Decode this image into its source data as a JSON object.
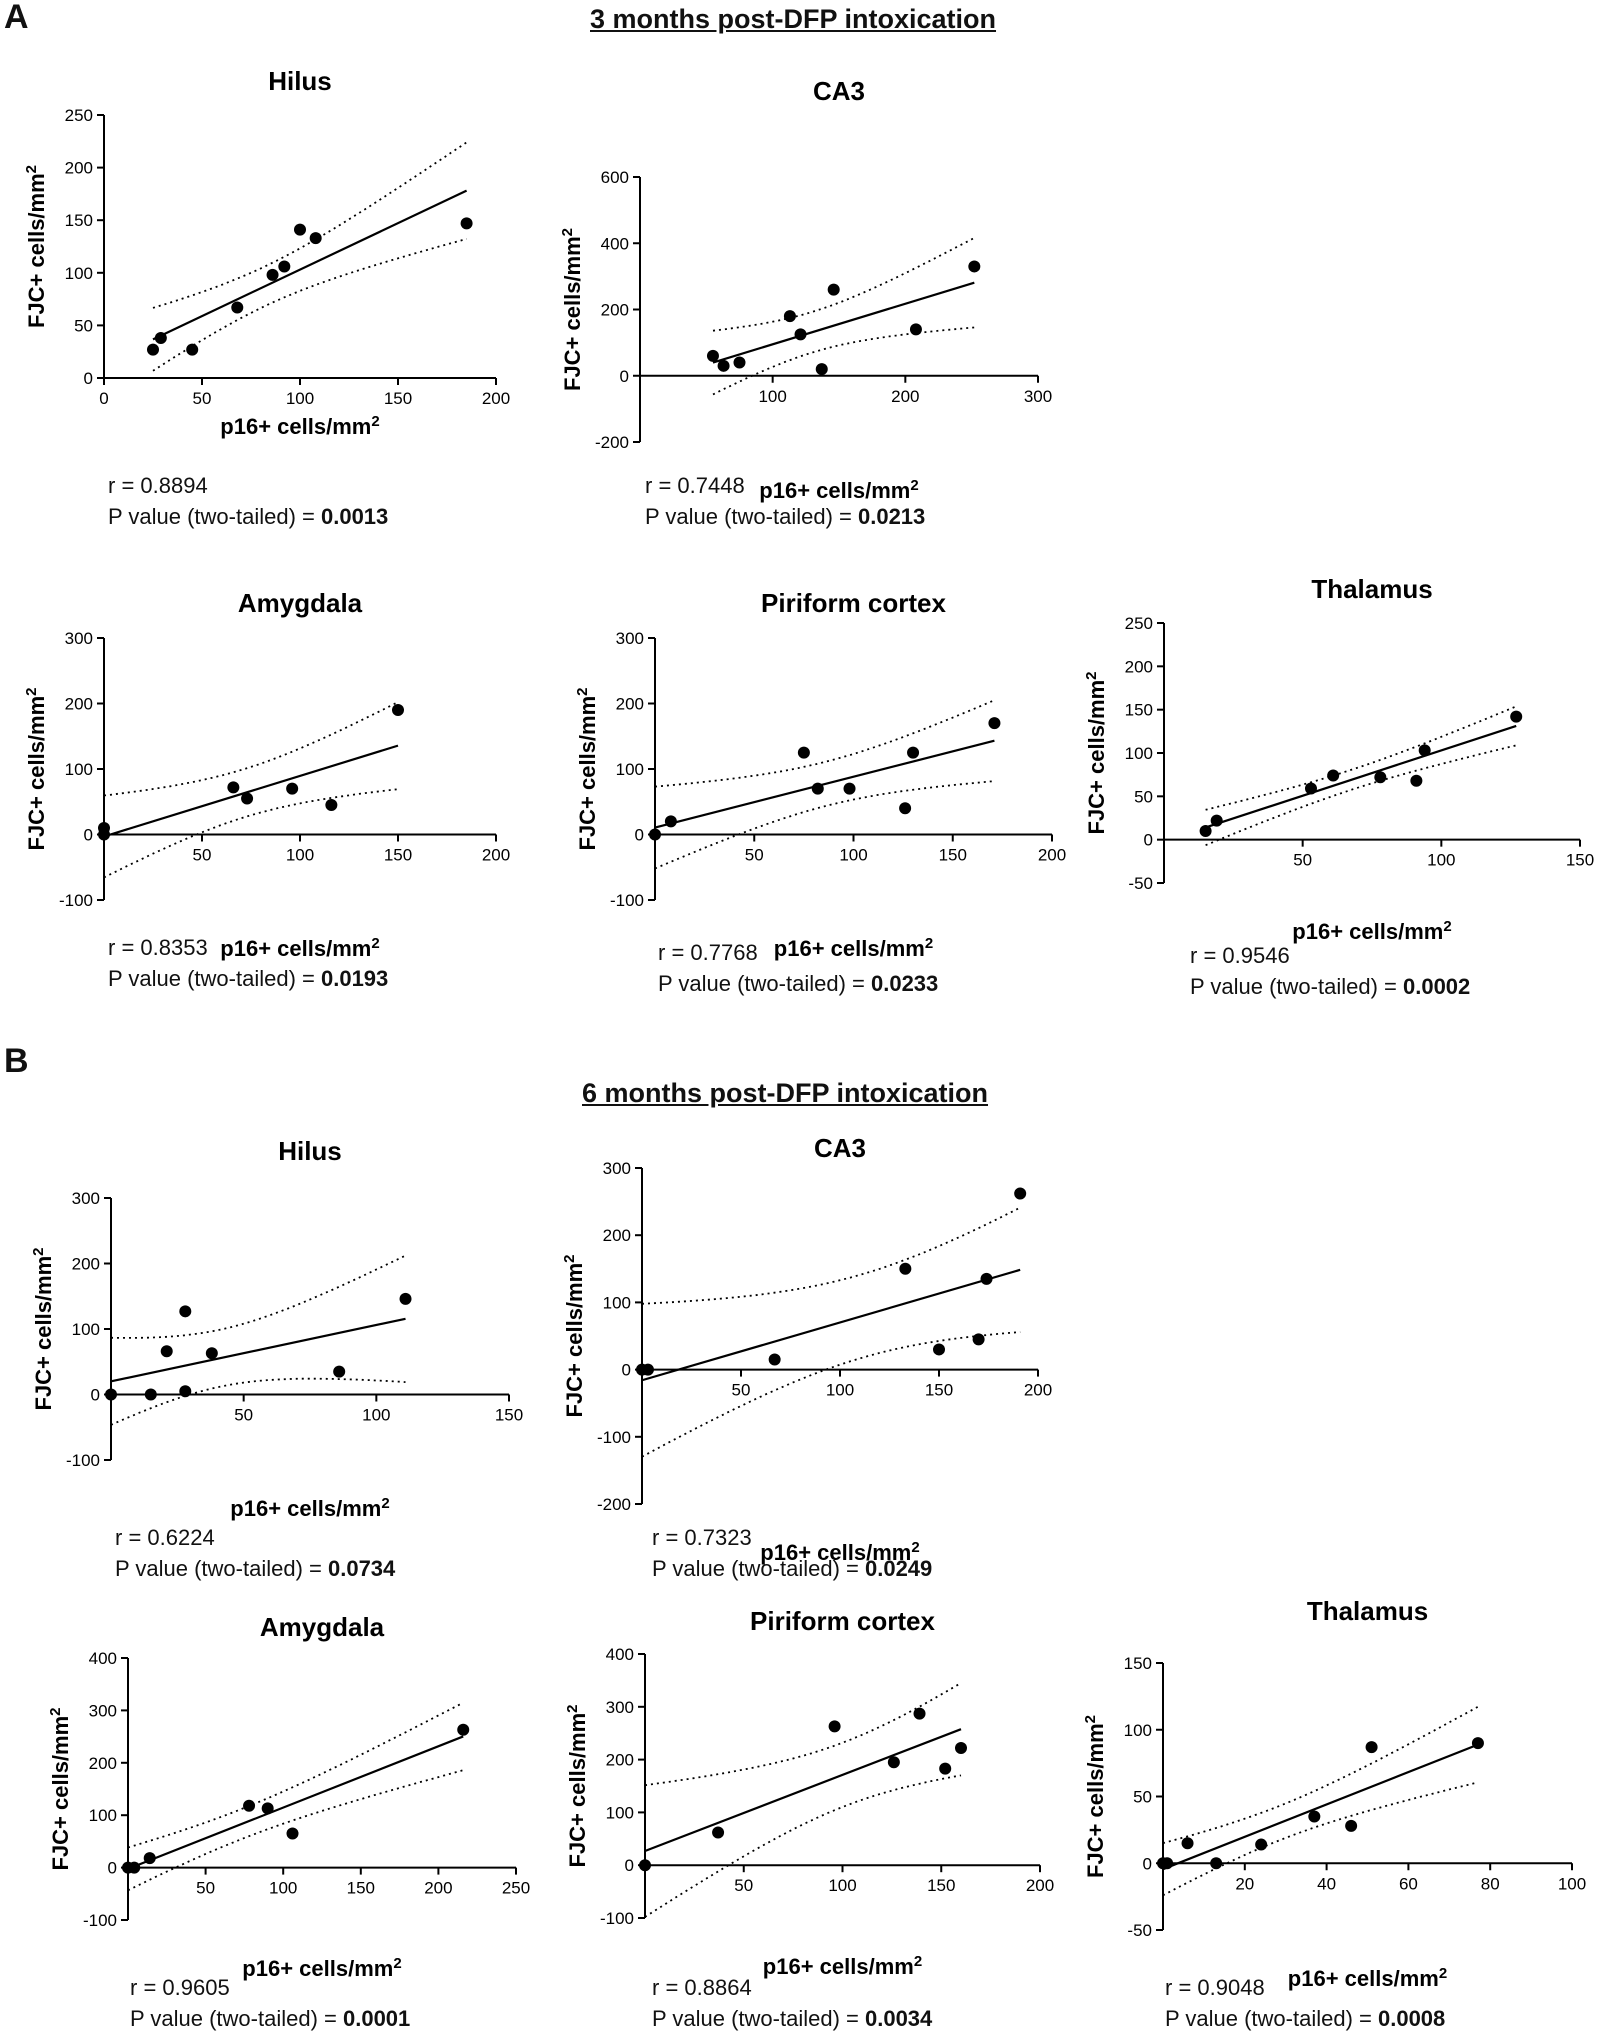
{
  "figure": {
    "panel_a": "A",
    "panel_b": "B",
    "section_a": "3 months post-DFP intoxication",
    "section_b": "6 months post-DFP intoxication"
  },
  "chart_data": [
    {
      "type": "scatter",
      "title": "Hilus",
      "section": "3 months post-DFP intoxication",
      "xlabel": "p16+ cells/mm²",
      "ylabel": "FJC+ cells/mm²",
      "xlim": [
        0,
        200
      ],
      "ylim": [
        0,
        250
      ],
      "xticks": [
        0,
        50,
        100,
        150,
        200
      ],
      "yticks": [
        0,
        50,
        100,
        150,
        200,
        250
      ],
      "x": [
        25,
        29,
        45,
        68,
        86,
        92,
        100,
        108,
        185
      ],
      "y": [
        27,
        38,
        27,
        67,
        98,
        106,
        141,
        133,
        147
      ],
      "fit_range": [
        25,
        185
      ],
      "r_text": "r = 0.8894",
      "p_text": "P value (two-tailed) = ",
      "p_value": "0.0013"
    },
    {
      "type": "scatter",
      "title": "CA3",
      "section": "3 months post-DFP intoxication",
      "xlabel": "p16+ cells/mm²",
      "ylabel": "FJC+ cells/mm²",
      "xlim": [
        0,
        300
      ],
      "ylim": [
        -200,
        600
      ],
      "xticks": [
        100,
        200,
        300
      ],
      "yticks": [
        -200,
        0,
        200,
        400,
        600
      ],
      "x": [
        55,
        63,
        75,
        113,
        121,
        137,
        146,
        208,
        252
      ],
      "y": [
        60,
        30,
        40,
        180,
        125,
        20,
        260,
        140,
        330
      ],
      "fit_range": [
        55,
        252
      ],
      "r_text": "r = 0.7448",
      "p_text": "P value (two-tailed) = ",
      "p_value": "0.0213"
    },
    {
      "type": "scatter",
      "title": "Amygdala",
      "section": "3 months post-DFP intoxication",
      "xlabel": "p16+ cells/mm²",
      "ylabel": "FJC+ cells/mm²",
      "xlim": [
        0,
        200
      ],
      "ylim": [
        -100,
        300
      ],
      "xticks": [
        50,
        100,
        150,
        200
      ],
      "yticks": [
        -100,
        0,
        100,
        200,
        300
      ],
      "x": [
        0,
        0,
        66,
        73,
        96,
        116,
        150
      ],
      "y": [
        0,
        10,
        72,
        55,
        70,
        45,
        190
      ],
      "fit_range": [
        0,
        150
      ],
      "r_text": "r = 0.8353",
      "p_text": "P value (two-tailed) = ",
      "p_value": "0.0193"
    },
    {
      "type": "scatter",
      "title": "Piriform cortex",
      "section": "3 months post-DFP intoxication",
      "xlabel": "p16+ cells/mm²",
      "ylabel": "FJC+ cells/mm²",
      "xlim": [
        0,
        200
      ],
      "ylim": [
        -100,
        300
      ],
      "xticks": [
        50,
        100,
        150,
        200
      ],
      "yticks": [
        -100,
        0,
        100,
        200,
        300
      ],
      "x": [
        0,
        8,
        75,
        82,
        98,
        126,
        130,
        171
      ],
      "y": [
        0,
        20,
        125,
        70,
        70,
        40,
        125,
        170
      ],
      "fit_range": [
        0,
        171
      ],
      "r_text": "r = 0.7768",
      "p_text": "P value (two-tailed) = ",
      "p_value": "0.0233"
    },
    {
      "type": "scatter",
      "title": "Thalamus",
      "section": "3 months post-DFP intoxication",
      "xlabel": "p16+ cells/mm²",
      "ylabel": "FJC+ cells/mm²",
      "xlim": [
        0,
        150
      ],
      "ylim": [
        -50,
        250
      ],
      "xticks": [
        50,
        100,
        150
      ],
      "yticks": [
        -50,
        0,
        50,
        100,
        150,
        200,
        250
      ],
      "x": [
        15,
        19,
        53,
        61,
        78,
        91,
        94,
        127
      ],
      "y": [
        10,
        22,
        59,
        74,
        72,
        68,
        103,
        142
      ],
      "fit_range": [
        15,
        127
      ],
      "r_text": "r = 0.9546",
      "p_text": "P value (two-tailed) = ",
      "p_value": "0.0002"
    },
    {
      "type": "scatter",
      "title": "Hilus",
      "section": "6 months post-DFP intoxication",
      "xlabel": "p16+ cells/mm²",
      "ylabel": "FJC+ cells/mm²",
      "xlim": [
        0,
        150
      ],
      "ylim": [
        -100,
        300
      ],
      "xticks": [
        50,
        100,
        150
      ],
      "yticks": [
        -100,
        0,
        100,
        200,
        300
      ],
      "x": [
        0,
        15,
        21,
        28,
        28,
        38,
        86,
        111
      ],
      "y": [
        0,
        0,
        66,
        5,
        127,
        63,
        35,
        146
      ],
      "fit_range": [
        0,
        111
      ],
      "r_text": "r = 0.6224",
      "p_text": "P value (two-tailed) = ",
      "p_value": "0.0734"
    },
    {
      "type": "scatter",
      "title": "CA3",
      "section": "6 months post-DFP intoxication",
      "xlabel": "p16+ cells/mm²",
      "ylabel": "FJC+ cells/mm²",
      "xlim": [
        0,
        200
      ],
      "ylim": [
        -200,
        300
      ],
      "xticks": [
        50,
        100,
        150,
        200
      ],
      "yticks": [
        -200,
        -100,
        0,
        100,
        200,
        300
      ],
      "x": [
        0,
        3,
        67,
        133,
        150,
        170,
        174,
        191
      ],
      "y": [
        0,
        0,
        15,
        150,
        30,
        45,
        135,
        262
      ],
      "fit_range": [
        0,
        191
      ],
      "r_text": "r = 0.7323",
      "p_text": "P value (two-tailed) = ",
      "p_value": "0.0249"
    },
    {
      "type": "scatter",
      "title": "Amygdala",
      "section": "6 months post-DFP intoxication",
      "xlabel": "p16+ cells/mm²",
      "ylabel": "FJC+ cells/mm²",
      "xlim": [
        0,
        250
      ],
      "ylim": [
        -100,
        400
      ],
      "xticks": [
        50,
        100,
        150,
        200,
        250
      ],
      "yticks": [
        -100,
        0,
        100,
        200,
        300,
        400
      ],
      "x": [
        0,
        4,
        14,
        78,
        90,
        106,
        216
      ],
      "y": [
        0,
        0,
        18,
        118,
        113,
        65,
        263
      ],
      "fit_range": [
        0,
        216
      ],
      "r_text": "r = 0.9605",
      "p_text": "P value (two-tailed) = ",
      "p_value": "0.0001"
    },
    {
      "type": "scatter",
      "title": "Piriform cortex",
      "section": "6 months post-DFP intoxication",
      "xlabel": "p16+ cells/mm²",
      "ylabel": "FJC+ cells/mm²",
      "xlim": [
        0,
        200
      ],
      "ylim": [
        -100,
        400
      ],
      "xticks": [
        50,
        100,
        150,
        200
      ],
      "yticks": [
        -100,
        0,
        100,
        200,
        300,
        400
      ],
      "x": [
        0,
        37,
        96,
        126,
        139,
        152,
        160
      ],
      "y": [
        0,
        62,
        263,
        195,
        287,
        183,
        222
      ],
      "fit_range": [
        0,
        160
      ],
      "r_text": "r = 0.8864",
      "p_text": "P value (two-tailed) = ",
      "p_value": "0.0034"
    },
    {
      "type": "scatter",
      "title": "Thalamus",
      "section": "6 months post-DFP intoxication",
      "xlabel": "p16+ cells/mm²",
      "ylabel": "FJC+ cells/mm²",
      "xlim": [
        0,
        100
      ],
      "ylim": [
        -50,
        150
      ],
      "xticks": [
        20,
        40,
        60,
        80,
        100
      ],
      "yticks": [
        -50,
        0,
        50,
        100,
        150
      ],
      "x": [
        0,
        1,
        6,
        13,
        24,
        37,
        46,
        51,
        77
      ],
      "y": [
        0,
        0,
        15,
        0,
        14,
        35,
        28,
        87,
        90
      ],
      "fit_range": [
        0,
        77
      ],
      "r_text": "r = 0.9048",
      "p_text": "P value (two-tailed) = ",
      "p_value": "0.0008"
    }
  ]
}
